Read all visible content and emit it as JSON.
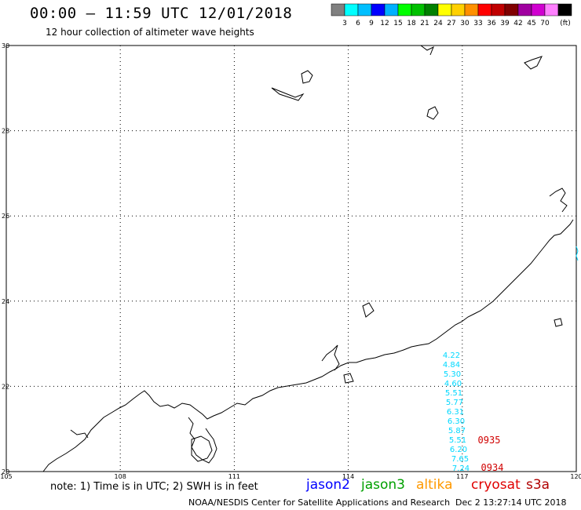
{
  "header": {
    "title": "00:00 – 11:59 UTC 12/01/2018",
    "subtitle": "12 hour collection of altimeter wave heights"
  },
  "legend": {
    "colors": [
      "#808080",
      "#00ffff",
      "#00bfff",
      "#0000ff",
      "#00b0ff",
      "#00ff00",
      "#00c000",
      "#008000",
      "#ffff00",
      "#ffd000",
      "#ff9000",
      "#ff0000",
      "#c00000",
      "#800000",
      "#a000a0",
      "#d000d0",
      "#ff80ff",
      "#000000"
    ],
    "labels": [
      "3",
      "6",
      "9",
      "12",
      "15",
      "18",
      "21",
      "24",
      "27",
      "30",
      "33",
      "36",
      "39",
      "42",
      "45",
      "70"
    ],
    "unit": "(ft)"
  },
  "map": {
    "lat_labels": [
      "30",
      "28",
      "26",
      "24",
      "22",
      "20"
    ],
    "lon_labels": [
      "105",
      "108",
      "111",
      "114",
      "117",
      "120"
    ],
    "swh_track": {
      "color": "#00d8ff",
      "values": [
        "4.22",
        "4.84",
        "5.30",
        "4.60",
        "5.51",
        "5.77",
        "6.31",
        "6.30",
        "5.87",
        "5.51",
        "6.20",
        "7.65",
        "7.24"
      ]
    },
    "time_labels": [
      {
        "text": "0935",
        "color": "#d00000"
      },
      {
        "text": "0934",
        "color": "#d00000"
      }
    ]
  },
  "footer": {
    "note": "note: 1) Time is in UTC; 2) SWH is in feet",
    "satellites": [
      {
        "name": "jason2",
        "color": "#0000ff"
      },
      {
        "name": "jason3",
        "color": "#00a000"
      },
      {
        "name": "altika",
        "color": "#ff9900"
      },
      {
        "name": "cryosat",
        "color": "#e00000"
      },
      {
        "name": "s3a",
        "color": "#b00000"
      }
    ],
    "credit": "NOAA/NESDIS Center for Satellite Applications and Research",
    "timestamp": "Dec  2 13:27:14 UTC 2018"
  }
}
